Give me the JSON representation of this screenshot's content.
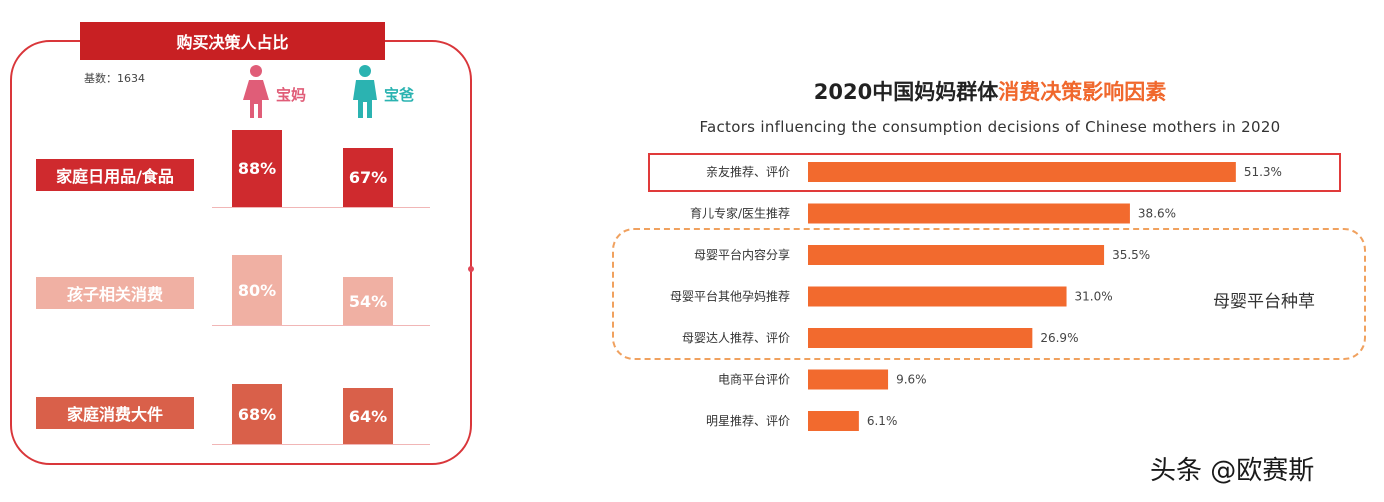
{
  "left_panel": {
    "title": "购买决策人占比",
    "base_label": "基数：1634",
    "legend": [
      {
        "name": "宝妈",
        "icon": "female-person-icon",
        "color": "#e05d78"
      },
      {
        "name": "宝爸",
        "icon": "male-person-icon",
        "color": "#2bb3b1"
      }
    ]
  },
  "right_panel": {
    "title_prefix": "2020中国妈妈群体",
    "title_highlight": "消费决策影响因素",
    "subtitle": "Factors influencing the consumption decisions of Chinese mothers in 2020",
    "group_label": "母婴平台种草"
  },
  "watermark": "头条 @欧赛斯",
  "chart_data": [
    {
      "type": "bar",
      "title": "购买决策人占比",
      "categories": [
        "家庭日用品/食品",
        "孩子相关消费",
        "家庭消费大件"
      ],
      "series": [
        {
          "name": "宝妈",
          "values": [
            88,
            80,
            68
          ],
          "labels": [
            "88%",
            "80%",
            "68%"
          ]
        },
        {
          "name": "宝爸",
          "values": [
            67,
            54,
            64
          ],
          "labels": [
            "67%",
            "54%",
            "64%"
          ]
        }
      ],
      "category_colors": [
        "#cf2a2e",
        "#f0b0a3",
        "#d9604a"
      ],
      "unit": "%"
    },
    {
      "type": "bar",
      "orientation": "horizontal",
      "title": "2020中国妈妈群体消费决策影响因素",
      "categories": [
        "亲友推荐、评价",
        "育儿专家/医生推荐",
        "母婴平台内容分享",
        "母婴平台其他孕妈推荐",
        "母婴达人推荐、评价",
        "电商平台评价",
        "明星推荐、评价"
      ],
      "values": [
        51.3,
        38.6,
        35.5,
        31.0,
        26.9,
        9.6,
        6.1
      ],
      "labels": [
        "51.3%",
        "38.6%",
        "35.5%",
        "31.0%",
        "26.9%",
        "9.6%",
        "6.1%"
      ],
      "bar_color": "#f26a2e",
      "unit": "%"
    }
  ]
}
